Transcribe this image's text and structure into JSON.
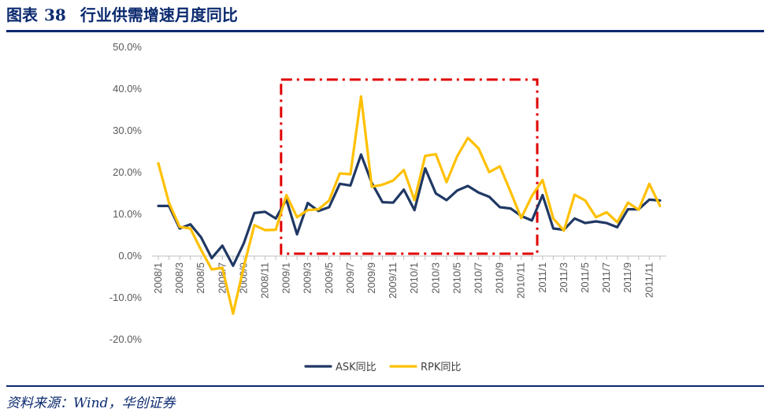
{
  "figure": {
    "label": "图表",
    "number": "38",
    "title": "行业供需增速月度同比",
    "source": "资料来源：Wind，华创证券"
  },
  "colors": {
    "ask": "#203864",
    "rpk": "#FFC000",
    "highlight": "#E00000",
    "axis": "#BFBFBF",
    "brand": "#0B2A6F"
  },
  "chart_data": {
    "type": "line",
    "title": "行业供需增速月度同比",
    "xlabel": "",
    "ylabel": "",
    "ylim": [
      -20,
      50
    ],
    "yticks": [
      -20,
      -10,
      0,
      10,
      20,
      30,
      40,
      50
    ],
    "ytick_labels": [
      "-20.0%",
      "-10.0%",
      "0.0%",
      "10.0%",
      "20.0%",
      "30.0%",
      "40.0%",
      "50.0%"
    ],
    "grid": false,
    "legend": "bottom-center",
    "x": [
      "2008/1",
      "2008/2",
      "2008/3",
      "2008/4",
      "2008/5",
      "2008/6",
      "2008/7",
      "2008/8",
      "2008/9",
      "2008/10",
      "2008/11",
      "2008/12",
      "2009/1",
      "2009/2",
      "2009/3",
      "2009/4",
      "2009/5",
      "2009/6",
      "2009/7",
      "2009/8",
      "2009/9",
      "2009/10",
      "2009/11",
      "2009/12",
      "2010/1",
      "2010/2",
      "2010/3",
      "2010/4",
      "2010/5",
      "2010/6",
      "2010/7",
      "2010/8",
      "2010/9",
      "2010/10",
      "2010/11",
      "2010/12",
      "2011/1",
      "2011/2",
      "2011/3",
      "2011/4",
      "2011/5",
      "2011/6",
      "2011/7",
      "2011/8",
      "2011/9",
      "2011/10",
      "2011/11",
      "2011/12"
    ],
    "xtick_labels": [
      "2008/1",
      "2008/3",
      "2008/5",
      "2008/7",
      "2008/9",
      "2008/11",
      "2009/1",
      "2009/3",
      "2009/5",
      "2009/7",
      "2009/9",
      "2009/11",
      "2010/1",
      "2010/3",
      "2010/5",
      "2010/7",
      "2010/9",
      "2010/11",
      "2011/1",
      "2011/3",
      "2011/5",
      "2011/7",
      "2011/9",
      "2011/11"
    ],
    "series": [
      {
        "name": "ASK同比",
        "values": [
          12,
          12,
          6.6,
          7.6,
          4.5,
          -0.5,
          2.5,
          -2.3,
          3,
          10.3,
          10.6,
          9,
          13.5,
          5.2,
          12.7,
          10.8,
          11.7,
          17.3,
          16.9,
          24.3,
          17.5,
          12.9,
          12.8,
          15.9,
          11,
          21,
          15,
          13.4,
          15.7,
          16.8,
          15.2,
          14.2,
          11.7,
          11.4,
          9.6,
          8.5,
          14.6,
          6.6,
          6.3,
          9,
          7.9,
          8.3,
          7.9,
          6.9,
          11.2,
          11.2,
          13.5,
          13.3
        ]
      },
      {
        "name": "RPK同比",
        "values": [
          22.2,
          12.7,
          7,
          6.6,
          1.5,
          -3.2,
          -2.8,
          -13.8,
          -2.6,
          7.4,
          6.2,
          6.3,
          14.6,
          9.3,
          11,
          11.2,
          13.3,
          19.8,
          19.6,
          38.2,
          16.6,
          17.1,
          18.1,
          20.6,
          13.4,
          24,
          24.4,
          17.7,
          23.9,
          28.3,
          25.8,
          20.1,
          21.5,
          15.4,
          9.1,
          14.4,
          18.2,
          9,
          6.1,
          14.7,
          13.3,
          9.3,
          10.5,
          8.1,
          12.8,
          11.1,
          17.3,
          12
        ]
      }
    ],
    "highlight_period": [
      "2009/1",
      "2010/12"
    ]
  }
}
